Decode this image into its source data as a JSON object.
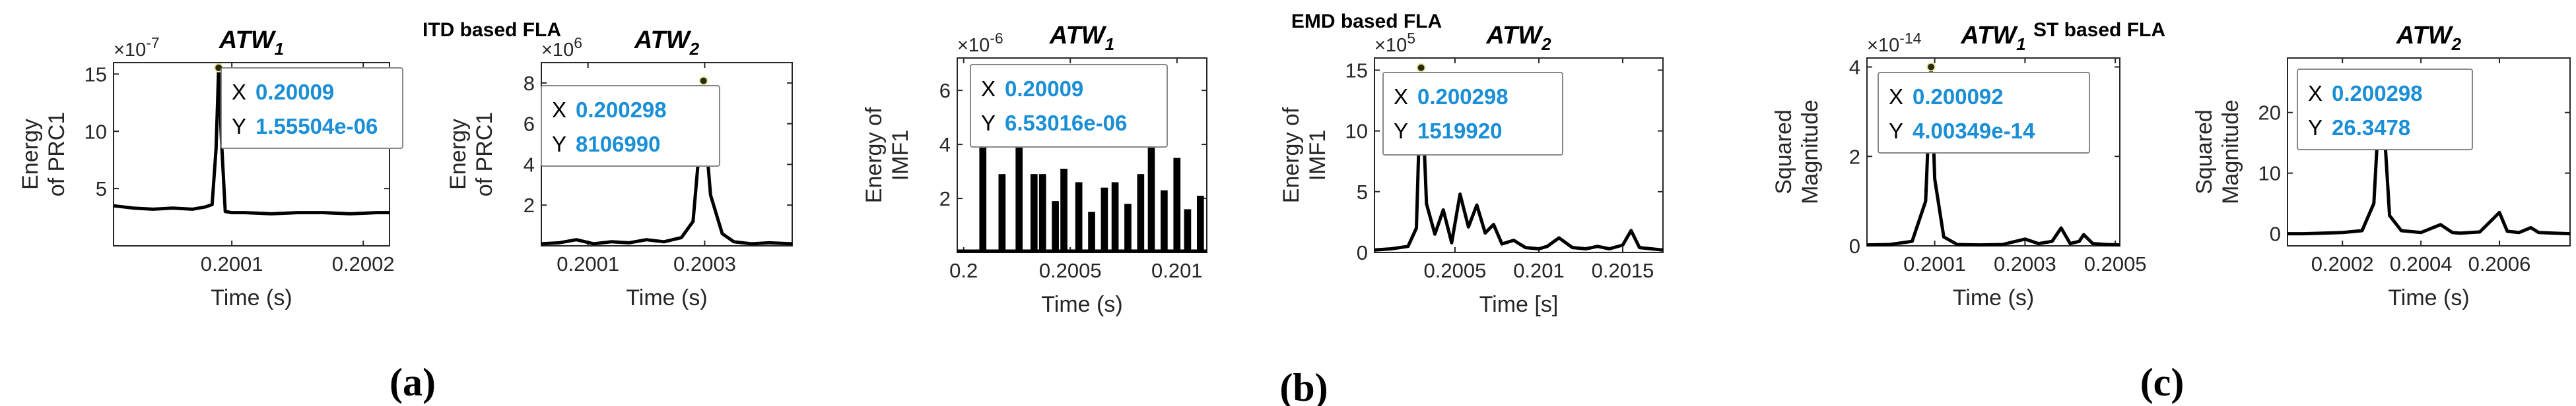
{
  "colors": {
    "series": "#000000",
    "datatip_value": "#1a8fd6",
    "datatip_border": "#888888",
    "datatip_bg": "#ffffff",
    "axis": "#262626"
  },
  "group_titles": [
    "ITD based FLA",
    "EMD based FLA",
    "ST based FLA"
  ],
  "panel_labels": [
    "(a)",
    "(b)",
    "(c)"
  ],
  "chart_data": [
    {
      "id": "itd_atw1",
      "type": "line",
      "title": "ATW",
      "title_sub": "1",
      "xlabel": "Time (s)",
      "ylabel": [
        "Energy",
        "of PRC1"
      ],
      "xlim": [
        0.20001,
        0.20022
      ],
      "ylim": [
        0,
        16
      ],
      "x_ticks": [
        0.2001,
        0.2002
      ],
      "x_tick_labels": [
        "0.2001",
        "0.2002"
      ],
      "y_ticks": [
        5,
        10,
        15
      ],
      "y_tick_labels": [
        "5",
        "10",
        "15"
      ],
      "exponent": "×10",
      "exponent_power": "-7",
      "datatip": {
        "x_label": "X",
        "x_value": "0.20009",
        "y_label": "Y",
        "y_value": "1.55504e-06"
      },
      "peak": {
        "x": 0.20009,
        "y": 15.55
      },
      "series": [
        {
          "name": "PRC1 energy",
          "x": [
            0.20001,
            0.200025,
            0.20004,
            0.200055,
            0.20007,
            0.20008,
            0.200085,
            0.200088,
            0.20009,
            0.200092,
            0.200095,
            0.2001,
            0.20011,
            0.20013,
            0.20015,
            0.20017,
            0.20019,
            0.20021,
            0.20022
          ],
          "y": [
            3.5,
            3.3,
            3.2,
            3.3,
            3.2,
            3.4,
            3.6,
            8.5,
            15.5,
            9.5,
            3.0,
            2.9,
            2.9,
            2.8,
            2.9,
            2.9,
            2.8,
            2.9,
            2.9
          ]
        }
      ]
    },
    {
      "id": "itd_atw2",
      "type": "line",
      "title": "ATW",
      "title_sub": "2",
      "xlabel": "Time (s)",
      "ylabel": [
        "Energy",
        "of PRC1"
      ],
      "xlim": [
        0.20002,
        0.20045
      ],
      "ylim": [
        0,
        9
      ],
      "x_ticks": [
        0.2001,
        0.2003
      ],
      "x_tick_labels": [
        "0.2001",
        "0.2003"
      ],
      "y_ticks": [
        2,
        4,
        6,
        8
      ],
      "y_tick_labels": [
        "2",
        "4",
        "6",
        "8"
      ],
      "exponent": "×10",
      "exponent_power": "6",
      "datatip": {
        "x_label": "X",
        "x_value": "0.200298",
        "y_label": "Y",
        "y_value": "8106990"
      },
      "peak": {
        "x": 0.200298,
        "y": 8.107
      },
      "series": [
        {
          "name": "PRC1 energy",
          "x": [
            0.20002,
            0.20005,
            0.20008,
            0.20011,
            0.20014,
            0.20017,
            0.2002,
            0.20023,
            0.20026,
            0.20028,
            0.20029,
            0.200298,
            0.2003,
            0.20031,
            0.20033,
            0.20035,
            0.20038,
            0.20041,
            0.20045
          ],
          "y": [
            0.1,
            0.15,
            0.3,
            0.1,
            0.2,
            0.15,
            0.3,
            0.2,
            0.4,
            1.2,
            4.5,
            8.1,
            6.0,
            2.5,
            0.6,
            0.2,
            0.1,
            0.15,
            0.1
          ]
        }
      ]
    },
    {
      "id": "emd_atw1",
      "type": "area",
      "title": "ATW",
      "title_sub": "1",
      "xlabel": "Time (s)",
      "ylabel": [
        "Energy of",
        "IMF1"
      ],
      "xlim": [
        0.19997,
        0.20114
      ],
      "ylim": [
        0,
        7.2
      ],
      "x_ticks": [
        0.2,
        0.2005,
        0.201
      ],
      "x_tick_labels": [
        "0.2",
        "0.2005",
        "0.201"
      ],
      "y_ticks": [
        2,
        4,
        6
      ],
      "y_tick_labels": [
        "2",
        "4",
        "6"
      ],
      "exponent": "×10",
      "exponent_power": "-6",
      "datatip": {
        "x_label": "X",
        "x_value": "0.20009",
        "y_label": "Y",
        "y_value": "6.53016e-06"
      },
      "peak": {
        "x": 0.20009,
        "y": 6.53
      },
      "series": [
        {
          "name": "IMF1 energy pulses",
          "centers": [
            0.20009,
            0.20018,
            0.20026,
            0.20033,
            0.20037,
            0.20043,
            0.20047,
            0.20054,
            0.2006,
            0.20066,
            0.20071,
            0.20077,
            0.20083,
            0.20088,
            0.20094,
            0.201,
            0.20105,
            0.20111
          ],
          "heights": [
            6.53,
            2.9,
            4.4,
            2.9,
            2.9,
            1.9,
            3.1,
            2.6,
            1.5,
            2.4,
            2.6,
            1.8,
            2.9,
            4.6,
            2.3,
            3.5,
            1.6,
            2.1
          ]
        }
      ]
    },
    {
      "id": "emd_atw2",
      "type": "line",
      "title": "ATW",
      "title_sub": "2",
      "xlabel": "Time [s]",
      "ylabel": [
        "Energy of",
        "IMF1"
      ],
      "xlim": [
        0.20002,
        0.20174
      ],
      "ylim": [
        0,
        16
      ],
      "x_ticks": [
        0.2005,
        0.201,
        0.2015
      ],
      "x_tick_labels": [
        "0.2005",
        "0.201",
        "0.2015"
      ],
      "y_ticks": [
        0,
        5,
        10,
        15
      ],
      "y_tick_labels": [
        "0",
        "5",
        "10",
        "15"
      ],
      "exponent": "×10",
      "exponent_power": "5",
      "datatip": {
        "x_label": "X",
        "x_value": "0.200298",
        "y_label": "Y",
        "y_value": "1519920"
      },
      "peak": {
        "x": 0.200298,
        "y": 15.2
      },
      "series": [
        {
          "name": "IMF1 energy",
          "x": [
            0.20002,
            0.20012,
            0.20022,
            0.20027,
            0.200298,
            0.20033,
            0.20038,
            0.20043,
            0.20048,
            0.20053,
            0.20058,
            0.20063,
            0.20068,
            0.20073,
            0.20078,
            0.20085,
            0.20092,
            0.201,
            0.20105,
            0.20112,
            0.2012,
            0.20128,
            0.20135,
            0.20142,
            0.2015,
            0.20155,
            0.2016,
            0.20167,
            0.20174
          ],
          "y": [
            0.2,
            0.3,
            0.5,
            2.0,
            15.2,
            4.0,
            1.5,
            3.5,
            0.8,
            4.8,
            2.1,
            3.9,
            1.6,
            2.3,
            0.7,
            1.0,
            0.4,
            0.3,
            0.5,
            1.2,
            0.4,
            0.3,
            0.5,
            0.3,
            0.6,
            1.8,
            0.4,
            0.3,
            0.2
          ]
        }
      ]
    },
    {
      "id": "st_atw1",
      "type": "line",
      "title": "ATW",
      "title_sub": "1",
      "xlabel": "Time (s)",
      "ylabel": [
        "Squared",
        "Magnitude"
      ],
      "xlim": [
        0.19995,
        0.20051
      ],
      "ylim": [
        0,
        4.2
      ],
      "x_ticks": [
        0.2001,
        0.2003,
        0.2005
      ],
      "x_tick_labels": [
        "0.2001",
        "0.2003",
        "0.2005"
      ],
      "y_ticks": [
        0,
        2,
        4
      ],
      "y_tick_labels": [
        "0",
        "2",
        "4"
      ],
      "exponent": "×10",
      "exponent_power": "-14",
      "datatip": {
        "x_label": "X",
        "x_value": "0.200092",
        "y_label": "Y",
        "y_value": "4.00349e-14"
      },
      "peak": {
        "x": 0.200092,
        "y": 4.0
      },
      "series": [
        {
          "name": "Squared magnitude",
          "x": [
            0.19995,
            0.2,
            0.20005,
            0.20008,
            0.200092,
            0.2001,
            0.20012,
            0.20015,
            0.2002,
            0.20025,
            0.2003,
            0.20033,
            0.20036,
            0.20038,
            0.2004,
            0.20042,
            0.20043,
            0.20045,
            0.20048,
            0.20051
          ],
          "y": [
            0.02,
            0.03,
            0.1,
            1.0,
            4.0,
            1.5,
            0.2,
            0.03,
            0.02,
            0.03,
            0.15,
            0.05,
            0.1,
            0.4,
            0.05,
            0.1,
            0.25,
            0.05,
            0.03,
            0.02
          ]
        }
      ]
    },
    {
      "id": "st_atw2",
      "type": "line",
      "title": "ATW",
      "title_sub": "2",
      "xlabel": "Time (s)",
      "ylabel": [
        "Squared",
        "Magnitude"
      ],
      "xlim": [
        0.20006,
        0.20078
      ],
      "ylim": [
        -2,
        29
      ],
      "x_ticks": [
        0.2002,
        0.2004,
        0.2006
      ],
      "x_tick_labels": [
        "0.2002",
        "0.2004",
        "0.2006"
      ],
      "y_ticks": [
        0,
        10,
        20
      ],
      "y_tick_labels": [
        "0",
        "10",
        "20"
      ],
      "exponent": "",
      "exponent_power": "",
      "datatip": {
        "x_label": "X",
        "x_value": "0.200298",
        "y_label": "Y",
        "y_value": "26.3478"
      },
      "peak": {
        "x": 0.200298,
        "y": 26.35
      },
      "series": [
        {
          "name": "Squared magnitude",
          "x": [
            0.20006,
            0.2001,
            0.20015,
            0.2002,
            0.20025,
            0.20028,
            0.200298,
            0.20032,
            0.20035,
            0.2004,
            0.20045,
            0.20048,
            0.2005,
            0.20055,
            0.2006,
            0.20062,
            0.20065,
            0.20068,
            0.2007,
            0.20074,
            0.20078
          ],
          "y": [
            0,
            0,
            0.1,
            0.2,
            0.5,
            5.0,
            26.3,
            3.0,
            0.5,
            0.2,
            1.5,
            0.2,
            0.1,
            0.3,
            3.5,
            0.4,
            0.2,
            1.0,
            0.2,
            0.1,
            0
          ]
        }
      ]
    }
  ]
}
